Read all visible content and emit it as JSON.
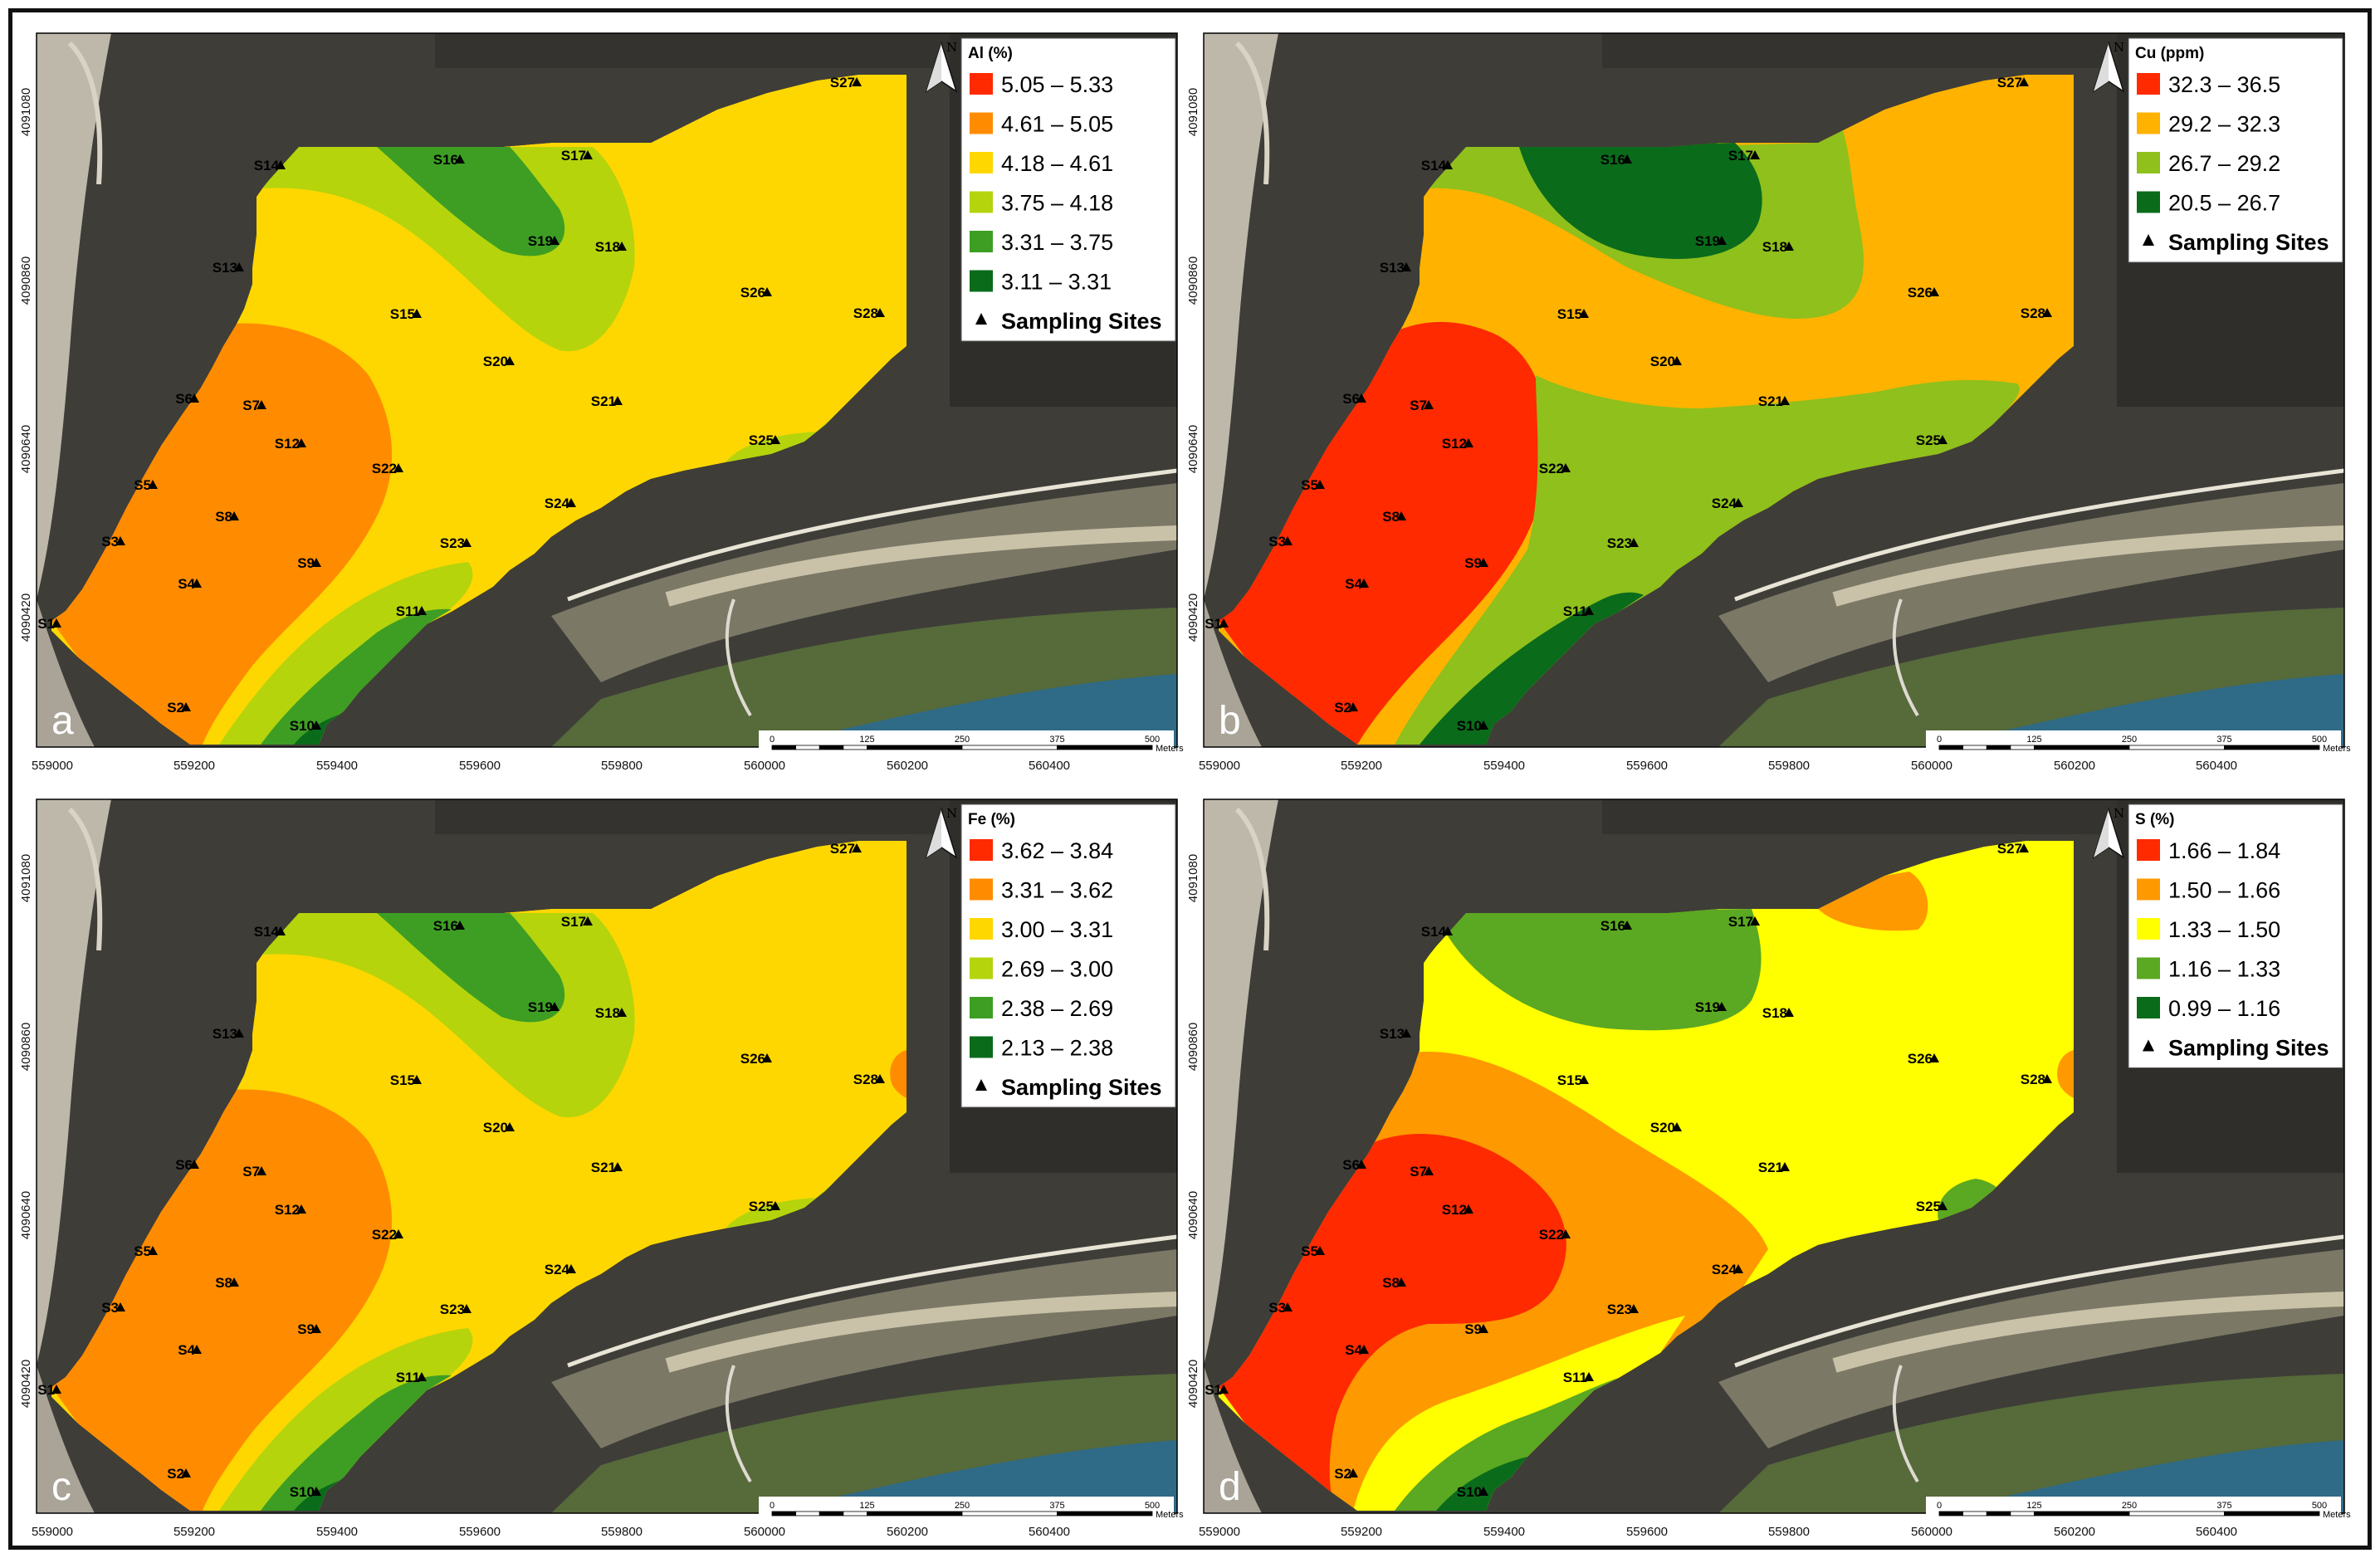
{
  "x_ticks": [
    "559000",
    "559200",
    "559400",
    "559600",
    "559800",
    "560000",
    "560200",
    "560400"
  ],
  "y_ticks": [
    "4090420",
    "4090640",
    "4090860",
    "4091080"
  ],
  "scale_bar": {
    "labels": [
      "0",
      "125",
      "250",
      "375",
      "500"
    ],
    "unit": "Meters"
  },
  "north_label": "N",
  "sites": [
    "S1",
    "S2",
    "S3",
    "S4",
    "S5",
    "S6",
    "S7",
    "S8",
    "S9",
    "S10",
    "S11",
    "S12",
    "S13",
    "S14",
    "S15",
    "S16",
    "S17",
    "S18",
    "S19",
    "S20",
    "S21",
    "S22",
    "S23",
    "S24",
    "S25",
    "S26",
    "S27",
    "S28"
  ],
  "sampling_label": "Sampling Sites",
  "panels": [
    {
      "letter": "a",
      "legend_title": "Al (%)",
      "classes": [
        {
          "label": "5.05 – 5.33",
          "color": "#ff2a00"
        },
        {
          "label": "4.61 – 5.05",
          "color": "#ff8c00"
        },
        {
          "label": "4.18 – 4.61",
          "color": "#ffd700"
        },
        {
          "label": "3.75 – 4.18",
          "color": "#b5d40c"
        },
        {
          "label": "3.31 – 3.75",
          "color": "#3d9e23"
        },
        {
          "label": "3.11 – 3.31",
          "color": "#0a6b1b"
        }
      ]
    },
    {
      "letter": "b",
      "legend_title": "Cu (ppm)",
      "classes": [
        {
          "label": "32.3 – 36.5",
          "color": "#ff2a00"
        },
        {
          "label": "29.2 – 32.3",
          "color": "#ffb300"
        },
        {
          "label": "26.7 – 29.2",
          "color": "#8fc01c"
        },
        {
          "label": "20.5 – 26.7",
          "color": "#0a6b1b"
        }
      ]
    },
    {
      "letter": "c",
      "legend_title": "Fe (%)",
      "classes": [
        {
          "label": "3.62 – 3.84",
          "color": "#ff2a00"
        },
        {
          "label": "3.31 – 3.62",
          "color": "#ff8c00"
        },
        {
          "label": "3.00 – 3.31",
          "color": "#ffd700"
        },
        {
          "label": "2.69 – 3.00",
          "color": "#b5d40c"
        },
        {
          "label": "2.38 – 2.69",
          "color": "#3d9e23"
        },
        {
          "label": "2.13 – 2.38",
          "color": "#0a6b1b"
        }
      ]
    },
    {
      "letter": "d",
      "legend_title": "S (%)",
      "classes": [
        {
          "label": "1.66 – 1.84",
          "color": "#ff2a00"
        },
        {
          "label": "1.50 – 1.66",
          "color": "#ff9900"
        },
        {
          "label": "1.33 – 1.50",
          "color": "#ffff00"
        },
        {
          "label": "1.16 – 1.33",
          "color": "#5ba822"
        },
        {
          "label": "0.99 – 1.16",
          "color": "#0a6b1b"
        }
      ]
    }
  ]
}
